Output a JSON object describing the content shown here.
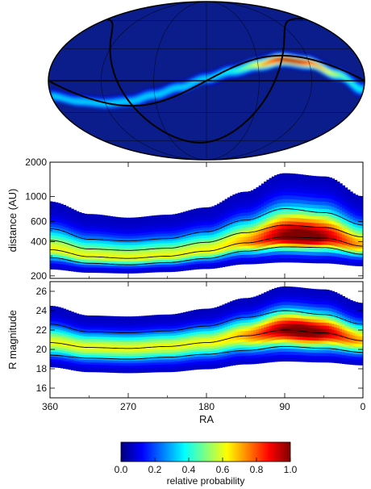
{
  "chart_data": [
    {
      "type": "heatmap",
      "projection": "mollweide",
      "panel": "sky-map",
      "background_color": "#0a1d8a",
      "band_ridge": {
        "ra": [
          360,
          330,
          300,
          270,
          240,
          210,
          180,
          150,
          120,
          90,
          60,
          30,
          0
        ],
        "dec": [
          -14,
          -19,
          -21,
          -19,
          -13,
          -6,
          2,
          9,
          15,
          20,
          17,
          6,
          -8
        ]
      },
      "band_peak_ra": 80
    },
    {
      "type": "heatmap",
      "panel": "distance-vs-ra",
      "xlabel": "RA",
      "ylabel": "distance (AU)",
      "xlim": [
        360,
        0
      ],
      "ylim": [
        190,
        2000
      ],
      "yscale": "log",
      "x_ticks": [
        "360",
        "270",
        "180",
        "90",
        "0"
      ],
      "y_ticks": [
        {
          "value": 2000,
          "label": "2000"
        },
        {
          "value": 1000,
          "label": "1000"
        },
        {
          "value": 600,
          "label": "600"
        },
        {
          "value": 400,
          "label": "400"
        },
        {
          "value": 200,
          "label": "200"
        }
      ],
      "contours": [
        {
          "name": "outer-upper",
          "ra": [
            360,
            315,
            270,
            225,
            180,
            135,
            90,
            45,
            0
          ],
          "values": [
            520,
            420,
            405,
            425,
            490,
            620,
            780,
            720,
            560
          ]
        },
        {
          "name": "inner-upper",
          "ra": [
            360,
            315,
            270,
            225,
            180,
            135,
            90,
            45,
            0
          ],
          "values": [
            410,
            345,
            335,
            350,
            395,
            480,
            560,
            535,
            440
          ]
        },
        {
          "name": "median",
          "ra": [
            360,
            315,
            270,
            225,
            180,
            135,
            90,
            45,
            0
          ],
          "values": [
            340,
            295,
            285,
            298,
            330,
            390,
            440,
            430,
            365
          ]
        },
        {
          "name": "inner-lower",
          "ra": [
            360,
            315,
            270,
            225,
            180,
            135,
            90,
            45,
            0
          ],
          "values": [
            290,
            258,
            250,
            262,
            285,
            330,
            360,
            355,
            310
          ]
        }
      ],
      "upper_envelope": {
        "ra": [
          360,
          315,
          270,
          225,
          180,
          135,
          90,
          45,
          0
        ],
        "values": [
          900,
          700,
          650,
          690,
          800,
          1100,
          1600,
          1500,
          1000
        ]
      },
      "lower_envelope": {
        "ra": [
          360,
          315,
          270,
          225,
          180,
          135,
          90,
          45,
          0
        ],
        "values": [
          230,
          215,
          212,
          218,
          232,
          255,
          265,
          260,
          245
        ]
      }
    },
    {
      "type": "heatmap",
      "panel": "magnitude-vs-ra",
      "xlabel": "RA",
      "ylabel": "R magnitude",
      "xlim": [
        360,
        0
      ],
      "ylim": [
        15,
        27
      ],
      "x_ticks": [
        "360",
        "270",
        "180",
        "90",
        "0"
      ],
      "y_ticks": [
        {
          "value": 26,
          "label": "26"
        },
        {
          "value": 24,
          "label": "24"
        },
        {
          "value": 22,
          "label": "22"
        },
        {
          "value": 20,
          "label": "20"
        },
        {
          "value": 18,
          "label": "18"
        },
        {
          "value": 16,
          "label": "16"
        }
      ],
      "contours": [
        {
          "name": "outer-upper",
          "ra": [
            360,
            315,
            270,
            225,
            180,
            135,
            90,
            45,
            0
          ],
          "values": [
            22.6,
            21.8,
            21.7,
            21.9,
            22.4,
            23.3,
            24.0,
            23.6,
            22.6
          ]
        },
        {
          "name": "median",
          "ra": [
            360,
            315,
            270,
            225,
            180,
            135,
            90,
            45,
            0
          ],
          "values": [
            20.7,
            20.2,
            20.1,
            20.3,
            20.7,
            21.4,
            22.0,
            21.7,
            20.9
          ]
        },
        {
          "name": "lower",
          "ra": [
            360,
            315,
            270,
            225,
            180,
            135,
            90,
            45,
            0
          ],
          "values": [
            19.4,
            19.1,
            19.0,
            19.2,
            19.5,
            19.9,
            20.3,
            20.1,
            19.7
          ]
        }
      ],
      "upper_envelope": {
        "ra": [
          360,
          315,
          270,
          225,
          180,
          135,
          90,
          45,
          0
        ],
        "values": [
          24.5,
          23.5,
          23.4,
          23.6,
          24.2,
          25.3,
          26.5,
          26.2,
          24.8
        ]
      },
      "lower_envelope": {
        "ra": [
          360,
          315,
          270,
          225,
          180,
          135,
          90,
          45,
          0
        ],
        "values": [
          18.2,
          17.7,
          17.6,
          17.7,
          18.0,
          18.5,
          18.8,
          18.7,
          18.4
        ]
      }
    },
    {
      "type": "colorbar",
      "panel": "colorbar",
      "label": "relative probability",
      "range": [
        0.0,
        1.0
      ],
      "ticks": [
        "0.0",
        "0.2",
        "0.4",
        "0.6",
        "0.8",
        "1.0"
      ],
      "colormap": [
        "#00007f",
        "#0000ff",
        "#0080ff",
        "#00ffff",
        "#80ff80",
        "#ffff00",
        "#ff8000",
        "#ff0000",
        "#7f0000"
      ]
    }
  ]
}
